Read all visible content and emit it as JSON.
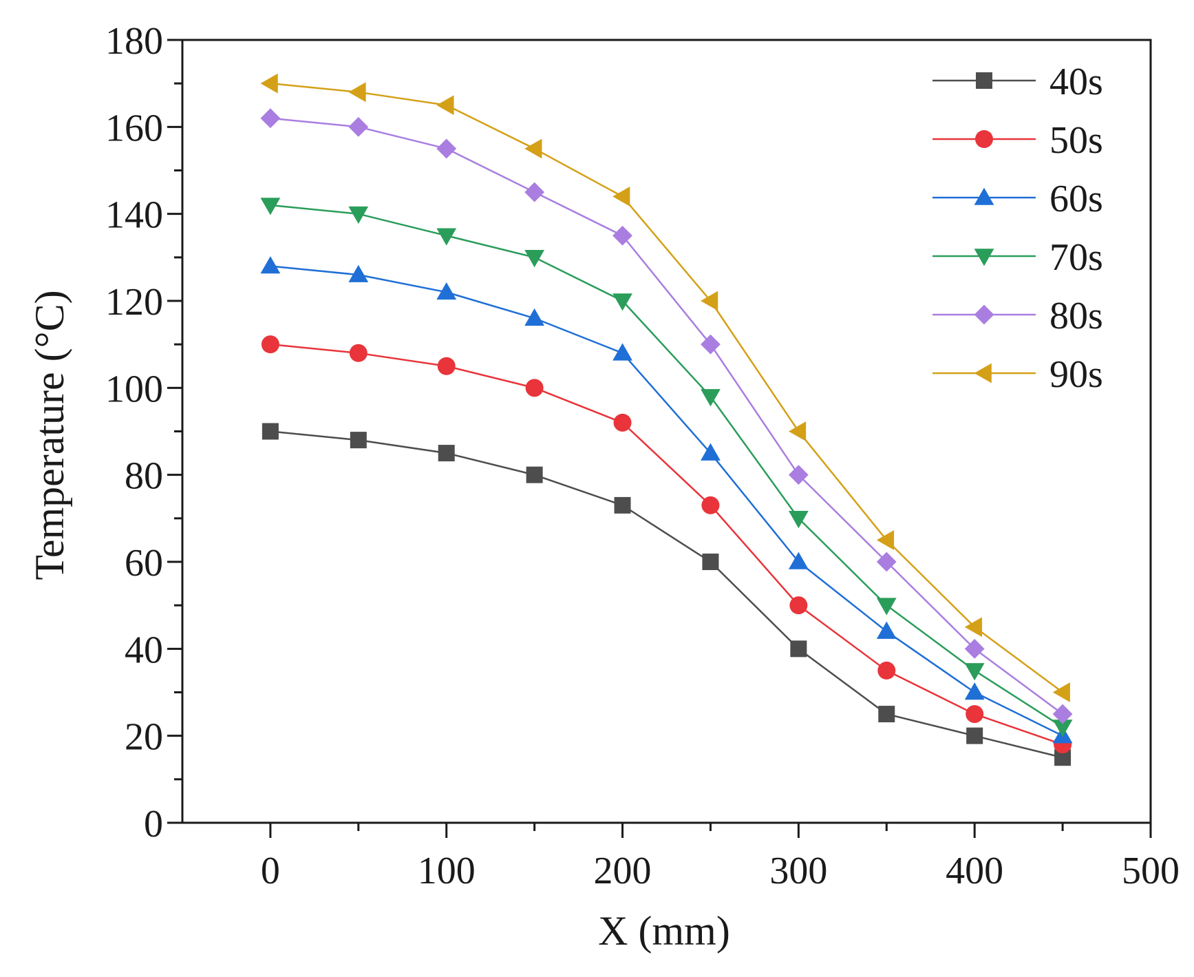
{
  "chart_data": {
    "type": "line",
    "title": "",
    "xlabel": "X (mm)",
    "ylabel": "Temperature (°C)",
    "xlim": [
      -50,
      500
    ],
    "ylim": [
      0,
      180
    ],
    "xticks": [
      "0",
      "100",
      "200",
      "300",
      "400",
      "500"
    ],
    "xtick_values": [
      0,
      100,
      200,
      300,
      400,
      500
    ],
    "yticks": [
      "0",
      "20",
      "40",
      "60",
      "80",
      "100",
      "120",
      "140",
      "160",
      "180"
    ],
    "ytick_values": [
      0,
      20,
      40,
      60,
      80,
      100,
      120,
      140,
      160,
      180
    ],
    "grid": false,
    "legend_position": "top-right",
    "x": [
      0,
      50,
      100,
      150,
      200,
      250,
      300,
      350,
      400,
      450
    ],
    "series": [
      {
        "name": "40s",
        "color": "#4d4d4d",
        "marker": "square",
        "values": [
          90,
          88,
          85,
          80,
          73,
          60,
          40,
          25,
          20,
          15
        ]
      },
      {
        "name": "50s",
        "color": "#e8343a",
        "marker": "circle",
        "values": [
          110,
          108,
          105,
          100,
          92,
          73,
          50,
          35,
          25,
          18
        ]
      },
      {
        "name": "60s",
        "color": "#1f6fd6",
        "marker": "triangle-up",
        "values": [
          128,
          126,
          122,
          116,
          108,
          85,
          60,
          44,
          30,
          20
        ]
      },
      {
        "name": "70s",
        "color": "#2a9d5a",
        "marker": "triangle-down",
        "values": [
          142,
          140,
          135,
          130,
          120,
          98,
          70,
          50,
          35,
          22
        ]
      },
      {
        "name": "80s",
        "color": "#a97ee0",
        "marker": "diamond",
        "values": [
          162,
          160,
          155,
          145,
          135,
          110,
          80,
          60,
          40,
          25
        ]
      },
      {
        "name": "90s",
        "color": "#d4a017",
        "marker": "triangle-left",
        "values": [
          170,
          168,
          165,
          155,
          144,
          120,
          90,
          65,
          45,
          30
        ]
      }
    ]
  }
}
